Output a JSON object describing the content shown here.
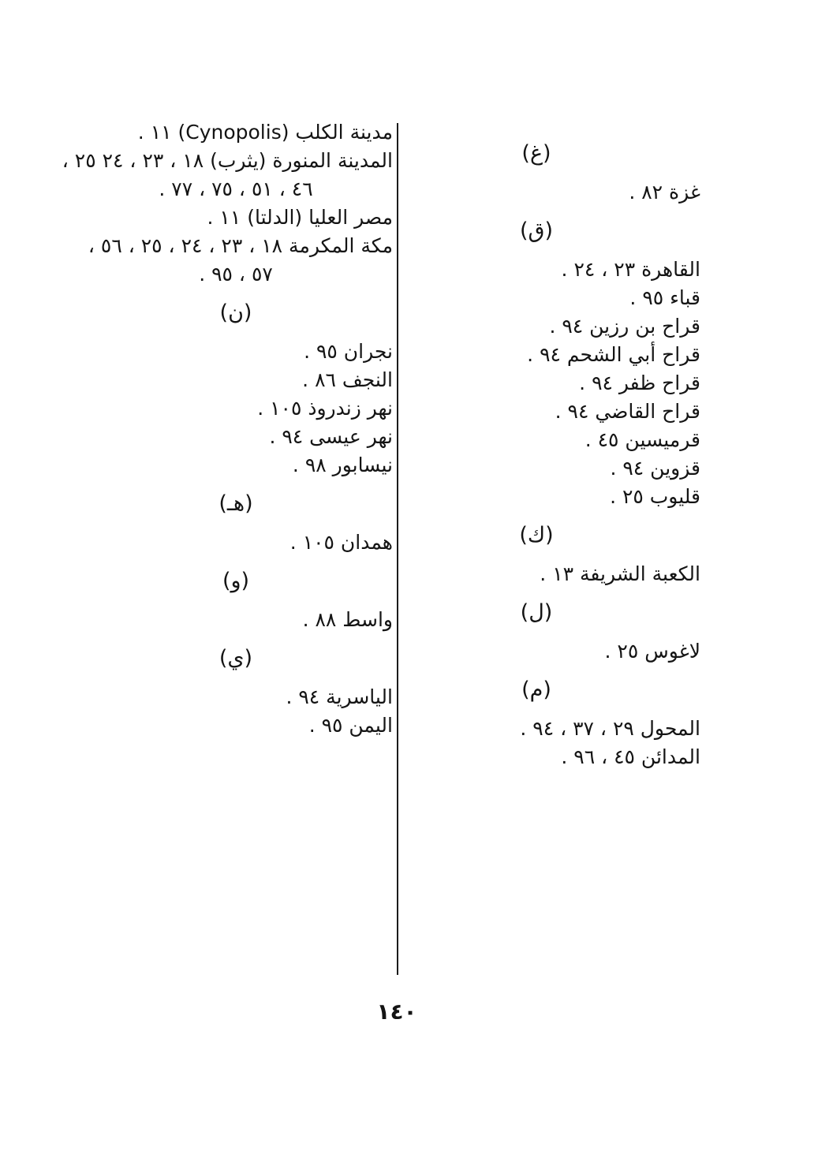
{
  "page": {
    "number_label": "١٤٠",
    "background_color": "#ffffff",
    "text_color": "#141414"
  },
  "index": {
    "columns": {
      "right": {
        "sections": [
          {
            "heading": "(غ)",
            "entries": [
              {
                "lines": [
                  {
                    "text": "غزة ٨٢ .",
                    "align": "right"
                  }
                ]
              }
            ]
          },
          {
            "heading": "(ق)",
            "entries": [
              {
                "lines": [
                  {
                    "text": "القاهرة ٢٣ ، ٢٤ .",
                    "align": "right"
                  }
                ]
              },
              {
                "lines": [
                  {
                    "text": "قباء ٩٥ .",
                    "align": "right"
                  }
                ]
              },
              {
                "lines": [
                  {
                    "text": "قراح بن رزين ٩٤ .",
                    "align": "right"
                  }
                ]
              },
              {
                "lines": [
                  {
                    "text": "قراح أبي الشحم ٩٤ .",
                    "align": "right"
                  }
                ]
              },
              {
                "lines": [
                  {
                    "text": "قراح ظفر ٩٤ .",
                    "align": "right"
                  }
                ]
              },
              {
                "lines": [
                  {
                    "text": "قراح القاضي ٩٤ .",
                    "align": "right"
                  }
                ]
              },
              {
                "lines": [
                  {
                    "text": "قرميسين ٤٥ .",
                    "align": "right"
                  }
                ]
              },
              {
                "lines": [
                  {
                    "text": "قزوين ٩٤ .",
                    "align": "right"
                  }
                ]
              },
              {
                "lines": [
                  {
                    "text": "قليوب ٢٥ .",
                    "align": "right"
                  }
                ]
              }
            ]
          },
          {
            "heading": "(ك)",
            "entries": [
              {
                "lines": [
                  {
                    "text": "الكعبة الشريفة ١٣ .",
                    "align": "right"
                  }
                ]
              }
            ]
          },
          {
            "heading": "(ل)",
            "entries": [
              {
                "lines": [
                  {
                    "text": "لاغوس ٢٥ .",
                    "align": "right"
                  }
                ]
              }
            ]
          },
          {
            "heading": "(م)",
            "entries": [
              {
                "lines": [
                  {
                    "text": "المحول ٢٩ ، ٣٧ ، ٩٤ .",
                    "align": "right"
                  }
                ]
              },
              {
                "lines": [
                  {
                    "text": "المدائن ٤٥ ، ٩٦ .",
                    "align": "right"
                  }
                ]
              }
            ]
          }
        ]
      },
      "left": {
        "sections": [
          {
            "heading": null,
            "entries": [
              {
                "lines": [
                  {
                    "text": "مدينة الكلب (Cynopolis) ١١ .",
                    "align": "right"
                  }
                ]
              },
              {
                "lines": [
                  {
                    "text": "المدينة المنورة (يثرب) ١٨ ، ٢٣ ، ٢٤ ٢٥ ،",
                    "align": "right"
                  },
                  {
                    "text": "٤٦ ، ٥١ ، ٧٥ ، ٧٧ .",
                    "align": "center"
                  }
                ]
              },
              {
                "lines": [
                  {
                    "text": "مصر العليا (الدلتا) ١١ .",
                    "align": "right"
                  }
                ]
              },
              {
                "lines": [
                  {
                    "text": "مكة المكرمة ١٨ ، ٢٣ ، ٢٤ ، ٢٥ ، ٥٦ ،",
                    "align": "right"
                  },
                  {
                    "text": "٥٧ ، ٩٥ .",
                    "align": "center"
                  }
                ]
              }
            ]
          },
          {
            "heading": "(ن)",
            "entries": [
              {
                "lines": [
                  {
                    "text": "نجران ٩٥ .",
                    "align": "right"
                  }
                ]
              },
              {
                "lines": [
                  {
                    "text": "النجف ٨٦ .",
                    "align": "right"
                  }
                ]
              },
              {
                "lines": [
                  {
                    "text": "نهر زندروذ ١٠٥ .",
                    "align": "right"
                  }
                ]
              },
              {
                "lines": [
                  {
                    "text": "نهر عيسى ٩٤ .",
                    "align": "right"
                  }
                ]
              },
              {
                "lines": [
                  {
                    "text": "نيسابور ٩٨ .",
                    "align": "right"
                  }
                ]
              }
            ]
          },
          {
            "heading": "(هـ)",
            "entries": [
              {
                "lines": [
                  {
                    "text": "همدان ١٠٥ .",
                    "align": "right"
                  }
                ]
              }
            ]
          },
          {
            "heading": "(و)",
            "entries": [
              {
                "lines": [
                  {
                    "text": "واسط ٨٨ .",
                    "align": "right"
                  }
                ]
              }
            ]
          },
          {
            "heading": "(ي)",
            "entries": [
              {
                "lines": [
                  {
                    "text": "الياسرية ٩٤ .",
                    "align": "right"
                  }
                ]
              },
              {
                "lines": [
                  {
                    "text": "اليمن ٩٥ .",
                    "align": "right"
                  }
                ]
              }
            ]
          }
        ]
      }
    }
  }
}
